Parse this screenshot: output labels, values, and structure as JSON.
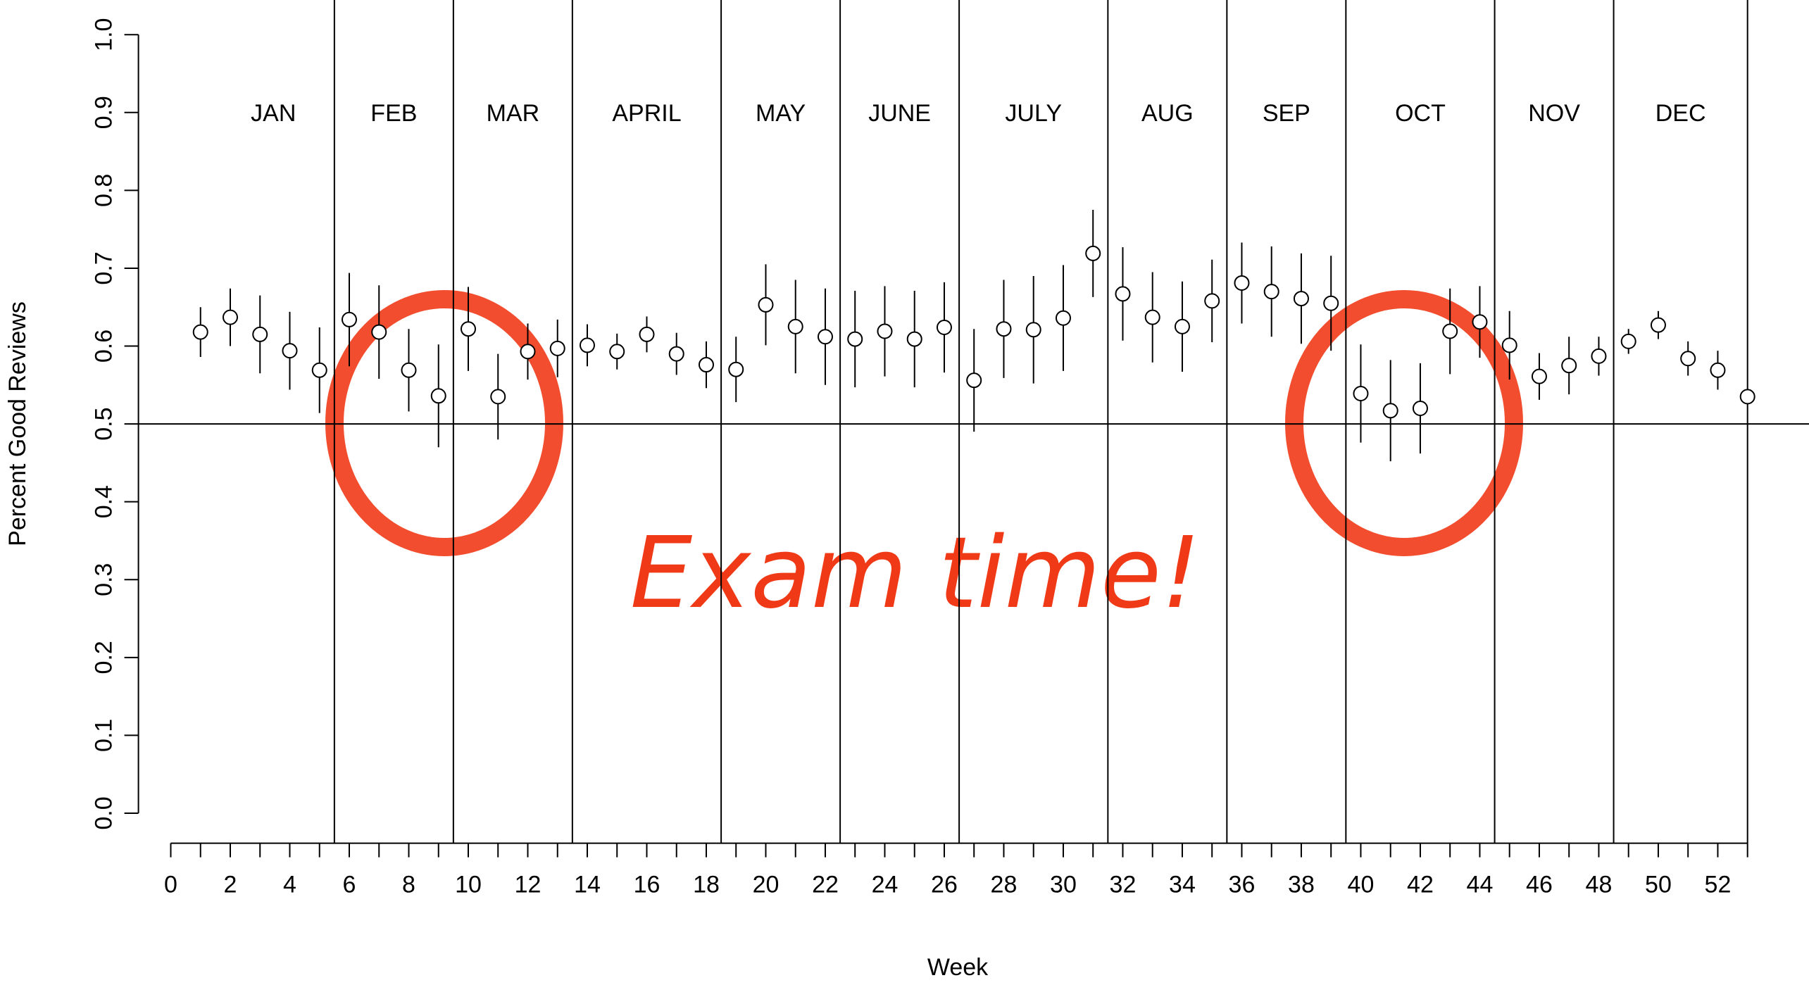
{
  "chart_data": {
    "type": "scatter",
    "xlabel": "Week",
    "ylabel": "Percent Good Reviews",
    "annotation": "Exam time!",
    "x": [
      1,
      2,
      3,
      4,
      5,
      6,
      7,
      8,
      9,
      10,
      11,
      12,
      13,
      14,
      15,
      16,
      17,
      18,
      19,
      20,
      21,
      22,
      23,
      24,
      25,
      26,
      27,
      28,
      29,
      30,
      31,
      32,
      33,
      34,
      35,
      36,
      37,
      38,
      39,
      40,
      41,
      42,
      43,
      44,
      45,
      46,
      47,
      48,
      49,
      50,
      51,
      52,
      53
    ],
    "series": [
      {
        "color": "#000000",
        "values": [
          0.618,
          0.637,
          0.615,
          0.594,
          0.569,
          0.634,
          0.618,
          0.569,
          0.536,
          0.622,
          0.535,
          0.593,
          0.597,
          0.601,
          0.593,
          0.615,
          0.59,
          0.576,
          0.57,
          0.653,
          0.625,
          0.612,
          0.609,
          0.619,
          0.609,
          0.624,
          0.556,
          0.622,
          0.621,
          0.636,
          0.719,
          0.667,
          0.637,
          0.625,
          0.658,
          0.681,
          0.67,
          0.661,
          0.655,
          0.539,
          0.517,
          0.52,
          0.619,
          0.631,
          0.601,
          0.561,
          0.575,
          0.587,
          0.606,
          0.627,
          0.584,
          0.569,
          0.535
        ],
        "errors": [
          0.032,
          0.037,
          0.05,
          0.05,
          0.055,
          0.06,
          0.06,
          0.053,
          0.066,
          0.054,
          0.055,
          0.036,
          0.037,
          0.027,
          0.023,
          0.023,
          0.027,
          0.03,
          0.042,
          0.052,
          0.06,
          0.062,
          0.062,
          0.058,
          0.062,
          0.058,
          0.066,
          0.063,
          0.069,
          0.068,
          0.056,
          0.06,
          0.058,
          0.058,
          0.053,
          0.052,
          0.058,
          0.058,
          0.061,
          0.063,
          0.065,
          0.058,
          0.055,
          0.046,
          0.044,
          0.03,
          0.037,
          0.025,
          0.016,
          0.018,
          0.022,
          0.025,
          0
        ]
      }
    ],
    "months": [
      "JAN",
      "FEB",
      "MAR",
      "APRIL",
      "MAY",
      "JUNE",
      "JULY",
      "AUG",
      "SEP",
      "OCT",
      "NOV",
      "DEC"
    ],
    "month_boundaries": [
      5.5,
      9.5,
      13.5,
      18.5,
      22.5,
      26.5,
      31.5,
      35.5,
      39.5,
      44.5,
      48.5,
      53
    ],
    "hline": 0.5,
    "xlim": [
      0,
      53
    ],
    "ylim": [
      0,
      1
    ],
    "xticks": [
      0,
      2,
      4,
      6,
      8,
      10,
      12,
      14,
      16,
      18,
      20,
      22,
      24,
      26,
      28,
      30,
      32,
      34,
      36,
      38,
      40,
      42,
      44,
      46,
      48,
      50,
      52
    ],
    "xticks_minor": [
      1,
      3,
      5,
      7,
      9,
      11,
      13,
      15,
      17,
      19,
      21,
      23,
      25,
      27,
      29,
      31,
      33,
      35,
      37,
      39,
      41,
      43,
      45,
      47,
      49,
      51,
      53
    ],
    "yticks": [
      {
        "value": 0,
        "label": "0.0"
      },
      0.1,
      0.2,
      0.3,
      0.4,
      0.5,
      0.6,
      0.7,
      0.8,
      0.9,
      {
        "value": 1,
        "label": "1.0"
      }
    ],
    "annotation_color": "#f03a17"
  }
}
